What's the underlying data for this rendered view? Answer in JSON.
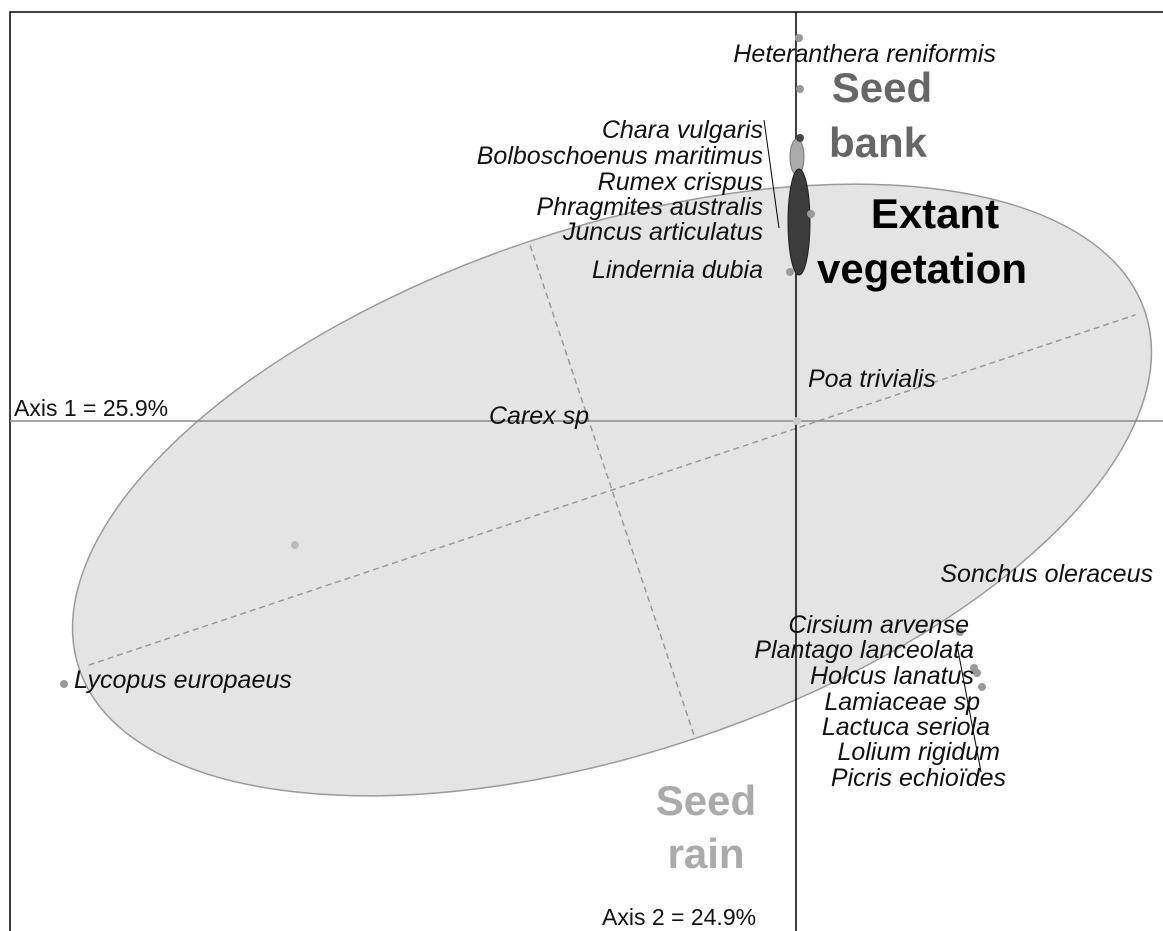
{
  "axes": {
    "axis1": "Axis 1 = 25.9%",
    "axis2": "Axis 2 = 24.9%"
  },
  "groups": [
    {
      "label": [
        "Seed",
        "bank"
      ]
    },
    {
      "label": [
        "Extant",
        "vegetation"
      ]
    },
    {
      "label": [
        "Seed",
        "rain"
      ]
    }
  ],
  "species": [
    "Heteranthera reniformis",
    "Chara vulgaris",
    "Bolboschoenus maritimus",
    "Rumex crispus",
    "Phragmites australis",
    "Juncus articulatus",
    "Lindernia dubia",
    "Poa trivialis",
    "Carex sp",
    "Sonchus oleraceus",
    "Cirsium arvense",
    "Plantago lanceolata",
    "Holcus lanatus",
    "Lamiaceae sp",
    "Lactuca seriola",
    "Lolium rigidum",
    "Picris echioïdes",
    "Lycopus europaeus"
  ]
}
